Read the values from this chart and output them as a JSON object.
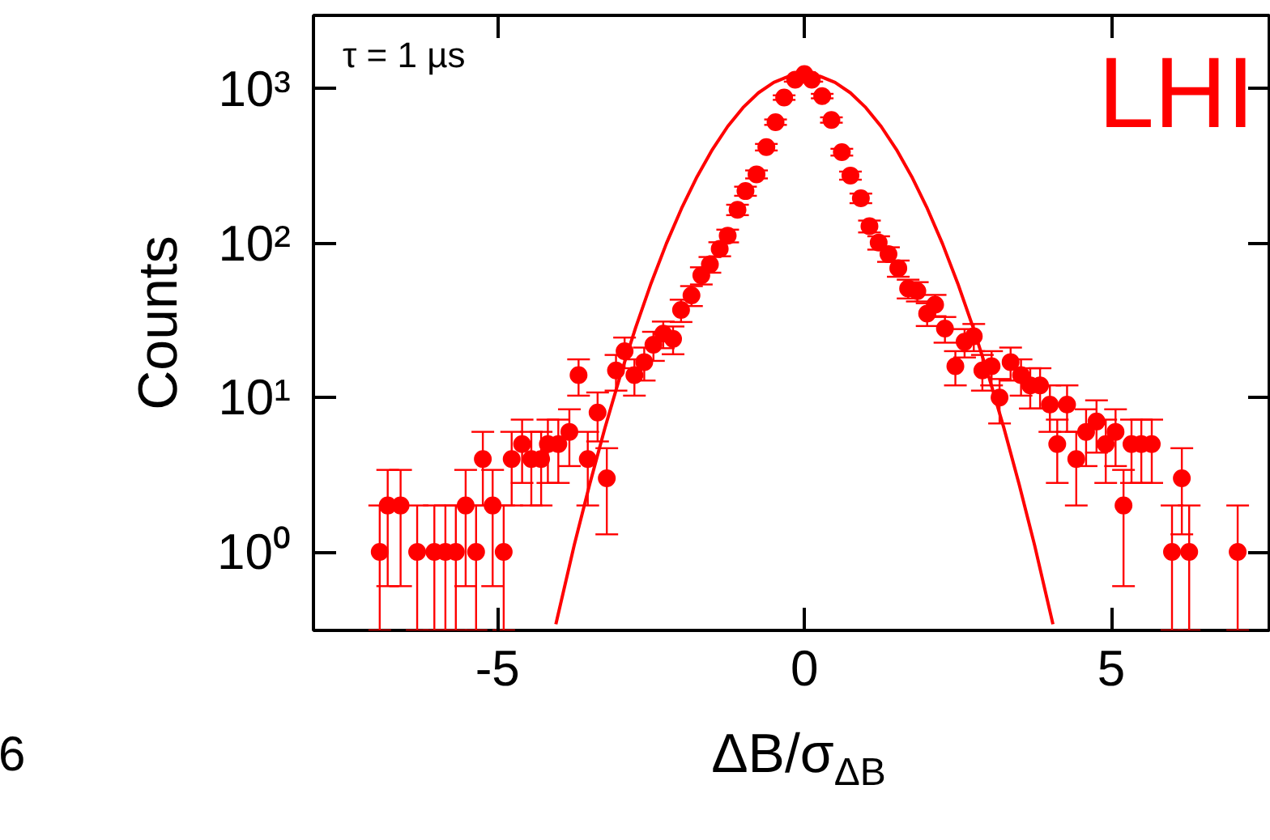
{
  "chart_data": {
    "type": "scatter",
    "xlabel": "ΔB/σ$_{ΔB}$",
    "ylabel": "Counts",
    "annotations": [
      "τ = 1 µs",
      "LHI",
      "6"
    ],
    "log": "y",
    "grid": false,
    "marker": "circle",
    "xlim": [
      -8,
      7.6
    ],
    "xticks": [
      -5,
      0,
      5
    ],
    "ylim": [
      0.31,
      3000
    ],
    "yticks": [
      {
        "value": 1,
        "label": "10⁰"
      },
      {
        "value": 10,
        "label": "10¹"
      },
      {
        "value": 100,
        "label": "10²"
      },
      {
        "value": 1000,
        "label": "10³"
      }
    ],
    "series": [
      {
        "color": "#ff0000",
        "x": [
          -6.92,
          -6.79,
          -6.58,
          -6.31,
          -6.03,
          -5.85,
          -5.68,
          -5.52,
          -5.35,
          -5.24,
          -5.08,
          -4.9,
          -4.77,
          -4.6,
          -4.45,
          -4.29,
          -4.18,
          -4.01,
          -3.83,
          -3.68,
          -3.53,
          -3.37,
          -3.22,
          -3.07,
          -2.93,
          -2.77,
          -2.61,
          -2.46,
          -2.3,
          -2.14,
          -2.01,
          -1.84,
          -1.68,
          -1.54,
          -1.38,
          -1.25,
          -1.09,
          -0.96,
          -0.78,
          -0.62,
          -0.47,
          -0.33,
          -0.15,
          0,
          0.12,
          0.29,
          0.44,
          0.61,
          0.75,
          0.92,
          1.06,
          1.21,
          1.37,
          1.53,
          1.69,
          1.84,
          2.0,
          2.13,
          2.29,
          2.46,
          2.61,
          2.76,
          2.9,
          3.05,
          3.18,
          3.36,
          3.53,
          3.68,
          3.84,
          4.0,
          4.12,
          4.28,
          4.43,
          4.59,
          4.76,
          4.91,
          5.07,
          5.2,
          5.33,
          5.49,
          5.66,
          5.99,
          6.15,
          6.27,
          7.06
        ],
        "values": [
          1,
          2,
          2,
          1,
          1,
          1,
          1,
          2,
          1,
          4,
          2,
          1,
          4,
          5,
          4,
          4,
          5,
          5,
          6,
          14,
          4,
          8,
          3,
          15,
          20,
          14,
          17,
          22,
          26,
          24,
          37,
          46,
          62,
          73,
          92,
          112,
          165,
          218,
          280,
          420,
          610,
          880,
          1150,
          1250,
          1150,
          900,
          630,
          390,
          275,
          196,
          129,
          101,
          85,
          69,
          51,
          49,
          35,
          40,
          28,
          16,
          23,
          25,
          15,
          16,
          10,
          17,
          14,
          12,
          12,
          9,
          5,
          9,
          4,
          6,
          7,
          5,
          6,
          2,
          5,
          5,
          5,
          1,
          3,
          1,
          1
        ],
        "errors": [
          [
            0.31,
            2
          ],
          1.4,
          1.4,
          [
            0.31,
            2
          ],
          [
            0.31,
            2
          ],
          [
            0.31,
            2
          ],
          [
            0.31,
            2
          ],
          1.4,
          [
            0.31,
            2
          ],
          2,
          1.4,
          [
            0.31,
            2
          ],
          2,
          2.2,
          2,
          2,
          2.2,
          2.2,
          2.4,
          3.7,
          2,
          2.8,
          1.7,
          3.9,
          4.5,
          3.7,
          4.1,
          4.7,
          5.1,
          4.9,
          6.1,
          6.8,
          7.9,
          8.5,
          9.6,
          10.6,
          12.8,
          14.8,
          16.7,
          20.5,
          24.7,
          29.7,
          33.9,
          35.4,
          33.9,
          30,
          25.1,
          19.7,
          16.6,
          14,
          11.4,
          10,
          9.2,
          8.3,
          7.1,
          7,
          5.9,
          6.3,
          5.3,
          4,
          4.8,
          5,
          3.9,
          4,
          3.2,
          4.1,
          3.7,
          3.5,
          3.5,
          3,
          2.2,
          3,
          2,
          2.4,
          2.6,
          2.2,
          2.4,
          1.4,
          2.2,
          2.2,
          2.2,
          [
            0.31,
            2
          ],
          1.7,
          [
            0.31,
            2
          ],
          [
            0.31,
            2
          ]
        ]
      },
      {
        "type": "line",
        "color": "#ff0000",
        "marker": "none",
        "x": [
          -4.05,
          -3.75,
          -3.5,
          -3.25,
          -3.0,
          -2.75,
          -2.5,
          -2.25,
          -2.0,
          -1.75,
          -1.5,
          -1.25,
          -1.0,
          -0.75,
          -0.5,
          -0.25,
          0,
          0.25,
          0.5,
          0.75,
          1.0,
          1.25,
          1.5,
          1.75,
          2.0,
          2.25,
          2.5,
          2.75,
          3.0,
          3.25,
          3.5,
          3.75,
          4.05
        ],
        "values": [
          0.34,
          1.11,
          2.73,
          6.37,
          13.9,
          28.4,
          54.8,
          99.4,
          169,
          270,
          405,
          572,
          758,
          944,
          1103,
          1211,
          1250,
          1211,
          1103,
          944,
          758,
          572,
          405,
          270,
          169,
          99.4,
          54.8,
          28.4,
          13.9,
          6.37,
          2.73,
          1.11,
          0.34
        ]
      }
    ]
  }
}
